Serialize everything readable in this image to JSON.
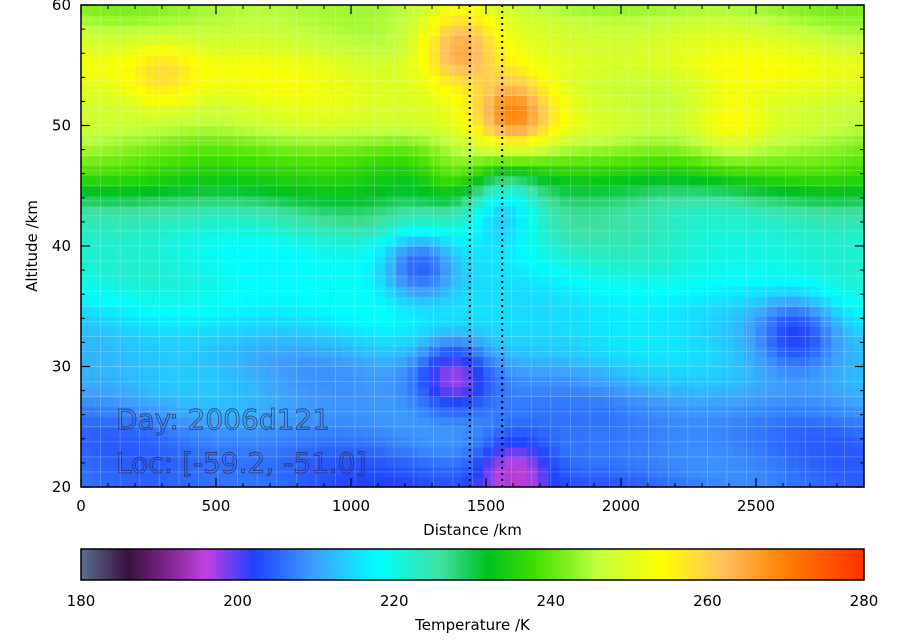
{
  "chart_data": {
    "type": "heatmap",
    "title": "",
    "xlabel": "Distance /km",
    "ylabel": "Altitude /km",
    "xlim": [
      0,
      2900
    ],
    "ylim": [
      20,
      60
    ],
    "x_ticks": [
      0,
      500,
      1000,
      1500,
      2000,
      2500
    ],
    "y_ticks": [
      20,
      30,
      40,
      50,
      60
    ],
    "grid": true,
    "colorbar": {
      "label": "Temperature /K",
      "range": [
        180,
        280
      ],
      "ticks": [
        180,
        200,
        220,
        240,
        260,
        280
      ],
      "stops": [
        {
          "value": 180,
          "color": "#5a6f8f"
        },
        {
          "value": 186,
          "color": "#3a1040"
        },
        {
          "value": 192,
          "color": "#8a2a9a"
        },
        {
          "value": 196,
          "color": "#c040e0"
        },
        {
          "value": 202,
          "color": "#2040ff"
        },
        {
          "value": 210,
          "color": "#40a0ff"
        },
        {
          "value": 218,
          "color": "#00ffff"
        },
        {
          "value": 226,
          "color": "#40e0a0"
        },
        {
          "value": 232,
          "color": "#00c020"
        },
        {
          "value": 238,
          "color": "#40e000"
        },
        {
          "value": 246,
          "color": "#c0ff40"
        },
        {
          "value": 254,
          "color": "#ffff00"
        },
        {
          "value": 262,
          "color": "#ffc060"
        },
        {
          "value": 270,
          "color": "#ff8000"
        },
        {
          "value": 280,
          "color": "#ff3000"
        }
      ]
    },
    "field": {
      "base_profile": [
        {
          "alt": 20,
          "temp": 205
        },
        {
          "alt": 25,
          "temp": 208
        },
        {
          "alt": 30,
          "temp": 212
        },
        {
          "alt": 35,
          "temp": 217
        },
        {
          "alt": 40,
          "temp": 221
        },
        {
          "alt": 43,
          "temp": 226
        },
        {
          "alt": 46,
          "temp": 235
        },
        {
          "alt": 50,
          "temp": 248
        },
        {
          "alt": 55,
          "temp": 251
        },
        {
          "alt": 60,
          "temp": 244
        }
      ],
      "features": [
        {
          "x": 1380,
          "alt": 29.5,
          "dT": -14
        },
        {
          "x": 1250,
          "alt": 38.5,
          "dT": -14
        },
        {
          "x": 1560,
          "alt": 43,
          "dT": -12
        },
        {
          "x": 1600,
          "alt": 51,
          "dT": 18
        },
        {
          "x": 1400,
          "alt": 56.5,
          "dT": 16
        },
        {
          "x": 300,
          "alt": 54,
          "dT": 8
        },
        {
          "x": 2400,
          "alt": 50,
          "dT": 6
        },
        {
          "x": 1400,
          "alt": 46,
          "dT": 8
        },
        {
          "x": 2650,
          "alt": 33,
          "dT": -10
        },
        {
          "x": 1600,
          "alt": 21.5,
          "dT": -12
        }
      ]
    },
    "reference_lines": [
      {
        "x": 1440,
        "style": "dotted"
      },
      {
        "x": 1560,
        "style": "dotted"
      }
    ],
    "annotations": [
      {
        "text": "Day: 2006d121",
        "x": 100,
        "alt": 24.8
      },
      {
        "text": "Loc: [-59.2, -51.0]",
        "x": 100,
        "alt": 21.2
      }
    ]
  }
}
